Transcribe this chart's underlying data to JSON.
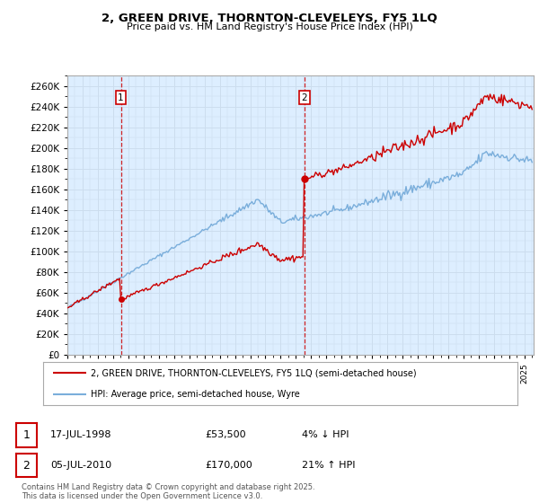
{
  "title": "2, GREEN DRIVE, THORNTON-CLEVELEYS, FY5 1LQ",
  "subtitle": "Price paid vs. HM Land Registry's House Price Index (HPI)",
  "legend_line1": "2, GREEN DRIVE, THORNTON-CLEVELEYS, FY5 1LQ (semi-detached house)",
  "legend_line2": "HPI: Average price, semi-detached house, Wyre",
  "transaction1_date": "17-JUL-1998",
  "transaction1_price": "£53,500",
  "transaction1_hpi": "4% ↓ HPI",
  "transaction2_date": "05-JUL-2010",
  "transaction2_price": "£170,000",
  "transaction2_hpi": "21% ↑ HPI",
  "footer": "Contains HM Land Registry data © Crown copyright and database right 2025.\nThis data is licensed under the Open Government Licence v3.0.",
  "red_color": "#cc0000",
  "blue_color": "#7aaedb",
  "grid_color": "#ccddee",
  "bg_color": "#ffffff",
  "plot_bg_color": "#ddeeff",
  "marker_box_color": "#cc0000",
  "ylim_min": 0,
  "ylim_max": 270000,
  "ytick_step": 20000,
  "transaction1_year": 1998.54,
  "transaction2_year": 2010.51,
  "transaction1_value": 53500,
  "transaction2_value": 170000
}
